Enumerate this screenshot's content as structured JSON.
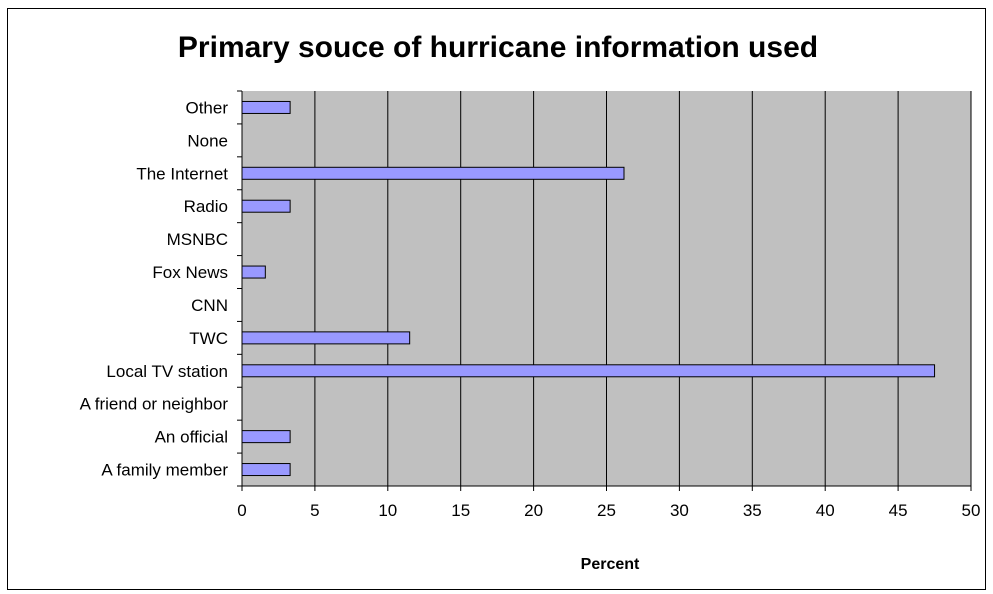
{
  "chart_data": {
    "type": "bar",
    "orientation": "horizontal",
    "title": "Primary souce of hurricane information used",
    "xlabel": "Percent",
    "ylabel": "",
    "categories": [
      "A family member",
      "An official",
      "A friend or neighbor",
      "Local TV station",
      "TWC",
      "CNN",
      "Fox News",
      "MSNBC",
      "Radio",
      "The Internet",
      "None",
      "Other"
    ],
    "values": [
      3.3,
      3.3,
      0,
      47.5,
      11.5,
      0,
      1.6,
      0,
      3.3,
      26.2,
      0,
      3.3
    ],
    "xlim": [
      0,
      50
    ],
    "xticks": [
      0,
      5,
      10,
      15,
      20,
      25,
      30,
      35,
      40,
      45,
      50
    ],
    "grid": "vertical",
    "legend": "none",
    "colors": {
      "bar_fill": "#9999ff",
      "bar_stroke": "#000000",
      "plot_background": "#c0c0c0",
      "gridline": "#000000"
    }
  }
}
